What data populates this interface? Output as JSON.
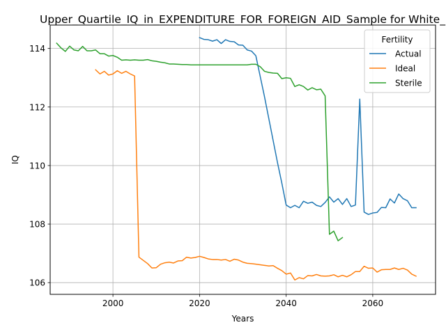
{
  "chart_data": {
    "type": "line",
    "title": "Upper_Quartile_IQ_in_EXPENDITURE_FOR_FOREIGN_AID_Sample for White_",
    "xlabel": "Years",
    "ylabel": "IQ",
    "xlim": [
      1985.5,
      2074.5
    ],
    "ylim": [
      105.6,
      114.8
    ],
    "xticks": [
      2000,
      2020,
      2040,
      2060
    ],
    "yticks": [
      106,
      108,
      110,
      112,
      114
    ],
    "grid": true,
    "legend": {
      "title": "Fertility",
      "position": "top-right"
    },
    "series": [
      {
        "name": "Actual",
        "color": "#1f77b4",
        "x": [
          2020,
          2021,
          2022,
          2023,
          2024,
          2025,
          2026,
          2027,
          2028,
          2029,
          2030,
          2031,
          2032,
          2033,
          2034,
          2035,
          2036,
          2037,
          2038,
          2039,
          2040,
          2041,
          2042,
          2043,
          2044,
          2045,
          2046,
          2047,
          2048,
          2049,
          2050,
          2051,
          2052,
          2053,
          2054,
          2055,
          2056,
          2057,
          2058,
          2059,
          2060,
          2061,
          2062,
          2063,
          2064,
          2065,
          2066,
          2067,
          2068,
          2069,
          2070
        ],
        "values": [
          114.37,
          114.31,
          114.3,
          114.25,
          114.3,
          114.17,
          114.3,
          114.24,
          114.23,
          114.12,
          114.11,
          113.95,
          113.91,
          113.75,
          113.05,
          112.35,
          111.6,
          110.85,
          110.1,
          109.4,
          108.65,
          108.56,
          108.64,
          108.56,
          108.78,
          108.71,
          108.75,
          108.64,
          108.6,
          108.74,
          108.93,
          108.75,
          108.87,
          108.67,
          108.87,
          108.6,
          108.65,
          112.27,
          108.41,
          108.33,
          108.38,
          108.4,
          108.57,
          108.56,
          108.86,
          108.72,
          109.03,
          108.87,
          108.8,
          108.56,
          108.56
        ]
      },
      {
        "name": "Ideal",
        "color": "#ff7f0e",
        "x": [
          1996,
          1997,
          1998,
          1999,
          2000,
          2001,
          2002,
          2003,
          2004,
          2005,
          2006,
          2007,
          2008,
          2009,
          2010,
          2011,
          2012,
          2013,
          2014,
          2015,
          2016,
          2017,
          2018,
          2019,
          2020,
          2021,
          2022,
          2023,
          2024,
          2025,
          2026,
          2027,
          2028,
          2029,
          2030,
          2031,
          2032,
          2033,
          2034,
          2035,
          2036,
          2037,
          2038,
          2039,
          2040,
          2041,
          2042,
          2043,
          2044,
          2045,
          2046,
          2047,
          2048,
          2049,
          2050,
          2051,
          2052,
          2053,
          2054,
          2055,
          2056,
          2057,
          2058,
          2059,
          2060,
          2061,
          2062,
          2063,
          2064,
          2065,
          2066,
          2067,
          2068,
          2069,
          2070
        ],
        "values": [
          113.27,
          113.13,
          113.22,
          113.09,
          113.13,
          113.24,
          113.15,
          113.22,
          113.13,
          113.06,
          106.87,
          106.76,
          106.65,
          106.5,
          106.51,
          106.63,
          106.68,
          106.7,
          106.67,
          106.74,
          106.75,
          106.87,
          106.84,
          106.86,
          106.9,
          106.86,
          106.81,
          106.79,
          106.79,
          106.77,
          106.79,
          106.73,
          106.8,
          106.77,
          106.7,
          106.66,
          106.65,
          106.63,
          106.61,
          106.59,
          106.57,
          106.58,
          106.49,
          106.41,
          106.29,
          106.33,
          106.09,
          106.17,
          106.13,
          106.24,
          106.23,
          106.28,
          106.23,
          106.22,
          106.23,
          106.27,
          106.2,
          106.25,
          106.2,
          106.27,
          106.38,
          106.38,
          106.56,
          106.49,
          106.5,
          106.36,
          106.44,
          106.45,
          106.45,
          106.5,
          106.45,
          106.49,
          106.43,
          106.29,
          106.22
        ]
      },
      {
        "name": "Sterile",
        "color": "#2ca02c",
        "x": [
          1987,
          1988,
          1989,
          1990,
          1991,
          1992,
          1993,
          1994,
          1995,
          1996,
          1997,
          1998,
          1999,
          2000,
          2001,
          2002,
          2003,
          2004,
          2005,
          2006,
          2007,
          2008,
          2009,
          2010,
          2011,
          2012,
          2013,
          2014,
          2015,
          2016,
          2017,
          2018,
          2019,
          2020,
          2021,
          2022,
          2023,
          2024,
          2025,
          2026,
          2027,
          2028,
          2029,
          2030,
          2031,
          2032,
          2033,
          2034,
          2035,
          2036,
          2037,
          2038,
          2039,
          2040,
          2041,
          2042,
          2043,
          2044,
          2045,
          2046,
          2047,
          2048,
          2049,
          2050,
          2051,
          2052,
          2053
        ],
        "values": [
          114.18,
          114.02,
          113.9,
          114.08,
          113.95,
          113.92,
          114.07,
          113.92,
          113.92,
          113.95,
          113.82,
          113.82,
          113.74,
          113.76,
          113.7,
          113.6,
          113.61,
          113.6,
          113.61,
          113.6,
          113.6,
          113.62,
          113.58,
          113.56,
          113.53,
          113.51,
          113.47,
          113.47,
          113.46,
          113.45,
          113.45,
          113.44,
          113.44,
          113.44,
          113.44,
          113.44,
          113.44,
          113.44,
          113.44,
          113.44,
          113.44,
          113.44,
          113.44,
          113.44,
          113.44,
          113.46,
          113.46,
          113.38,
          113.22,
          113.18,
          113.16,
          113.15,
          112.97,
          113.0,
          112.98,
          112.7,
          112.76,
          112.7,
          112.58,
          112.66,
          112.59,
          112.61,
          112.38,
          107.65,
          107.76,
          107.43,
          107.54
        ]
      }
    ]
  }
}
